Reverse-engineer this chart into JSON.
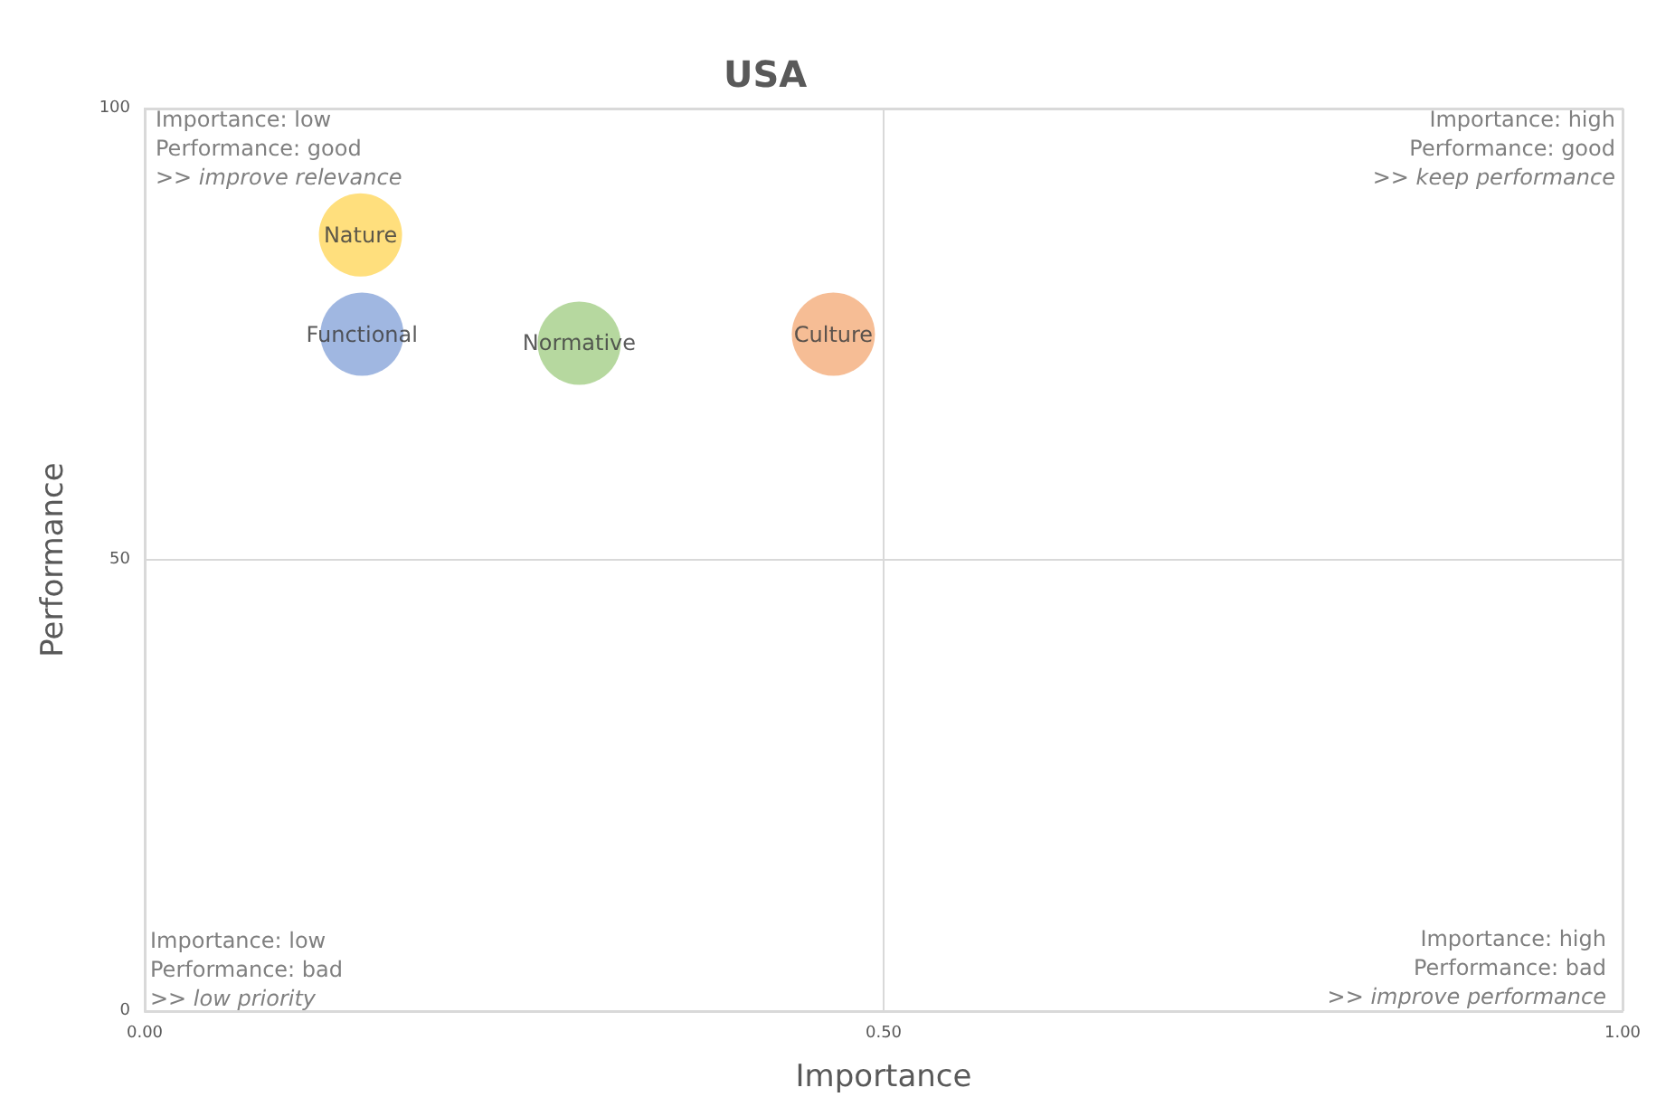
{
  "chart_data": {
    "type": "scatter",
    "title": "USA",
    "xlabel": "Importance",
    "ylabel": "Performance",
    "series": [
      {
        "name": "Nature",
        "color": "#ffd966",
        "x": [
          0.146
        ],
        "values": [
          86
        ]
      },
      {
        "name": "Functional",
        "color": "#8faadc",
        "x": [
          0.147
        ],
        "values": [
          75
        ]
      },
      {
        "name": "Normative",
        "color": "#a9d18e",
        "x": [
          0.294
        ],
        "values": [
          74
        ]
      },
      {
        "name": "Culture",
        "color": "#f4b183",
        "x": [
          0.466
        ],
        "values": [
          75
        ]
      }
    ],
    "xlim": [
      0,
      1
    ],
    "xticks": [
      {
        "value": 0,
        "label": "0.00"
      },
      {
        "value": 0.5,
        "label": "0.50"
      },
      {
        "value": 1,
        "label": "1.00"
      }
    ],
    "ylim": [
      0,
      100
    ],
    "yticks": [
      0,
      50,
      100
    ],
    "grid": true,
    "legend": false,
    "marker": "circle",
    "annotations": [
      "Importance: low\nPerformance: good\n>> improve relevance",
      "Importance: high\nPerformance: good\n>> keep performance",
      "Importance: low\nPerformance: bad\n>> low priority",
      "Importance: high\nPerformance: bad\n>> improve performance"
    ]
  }
}
